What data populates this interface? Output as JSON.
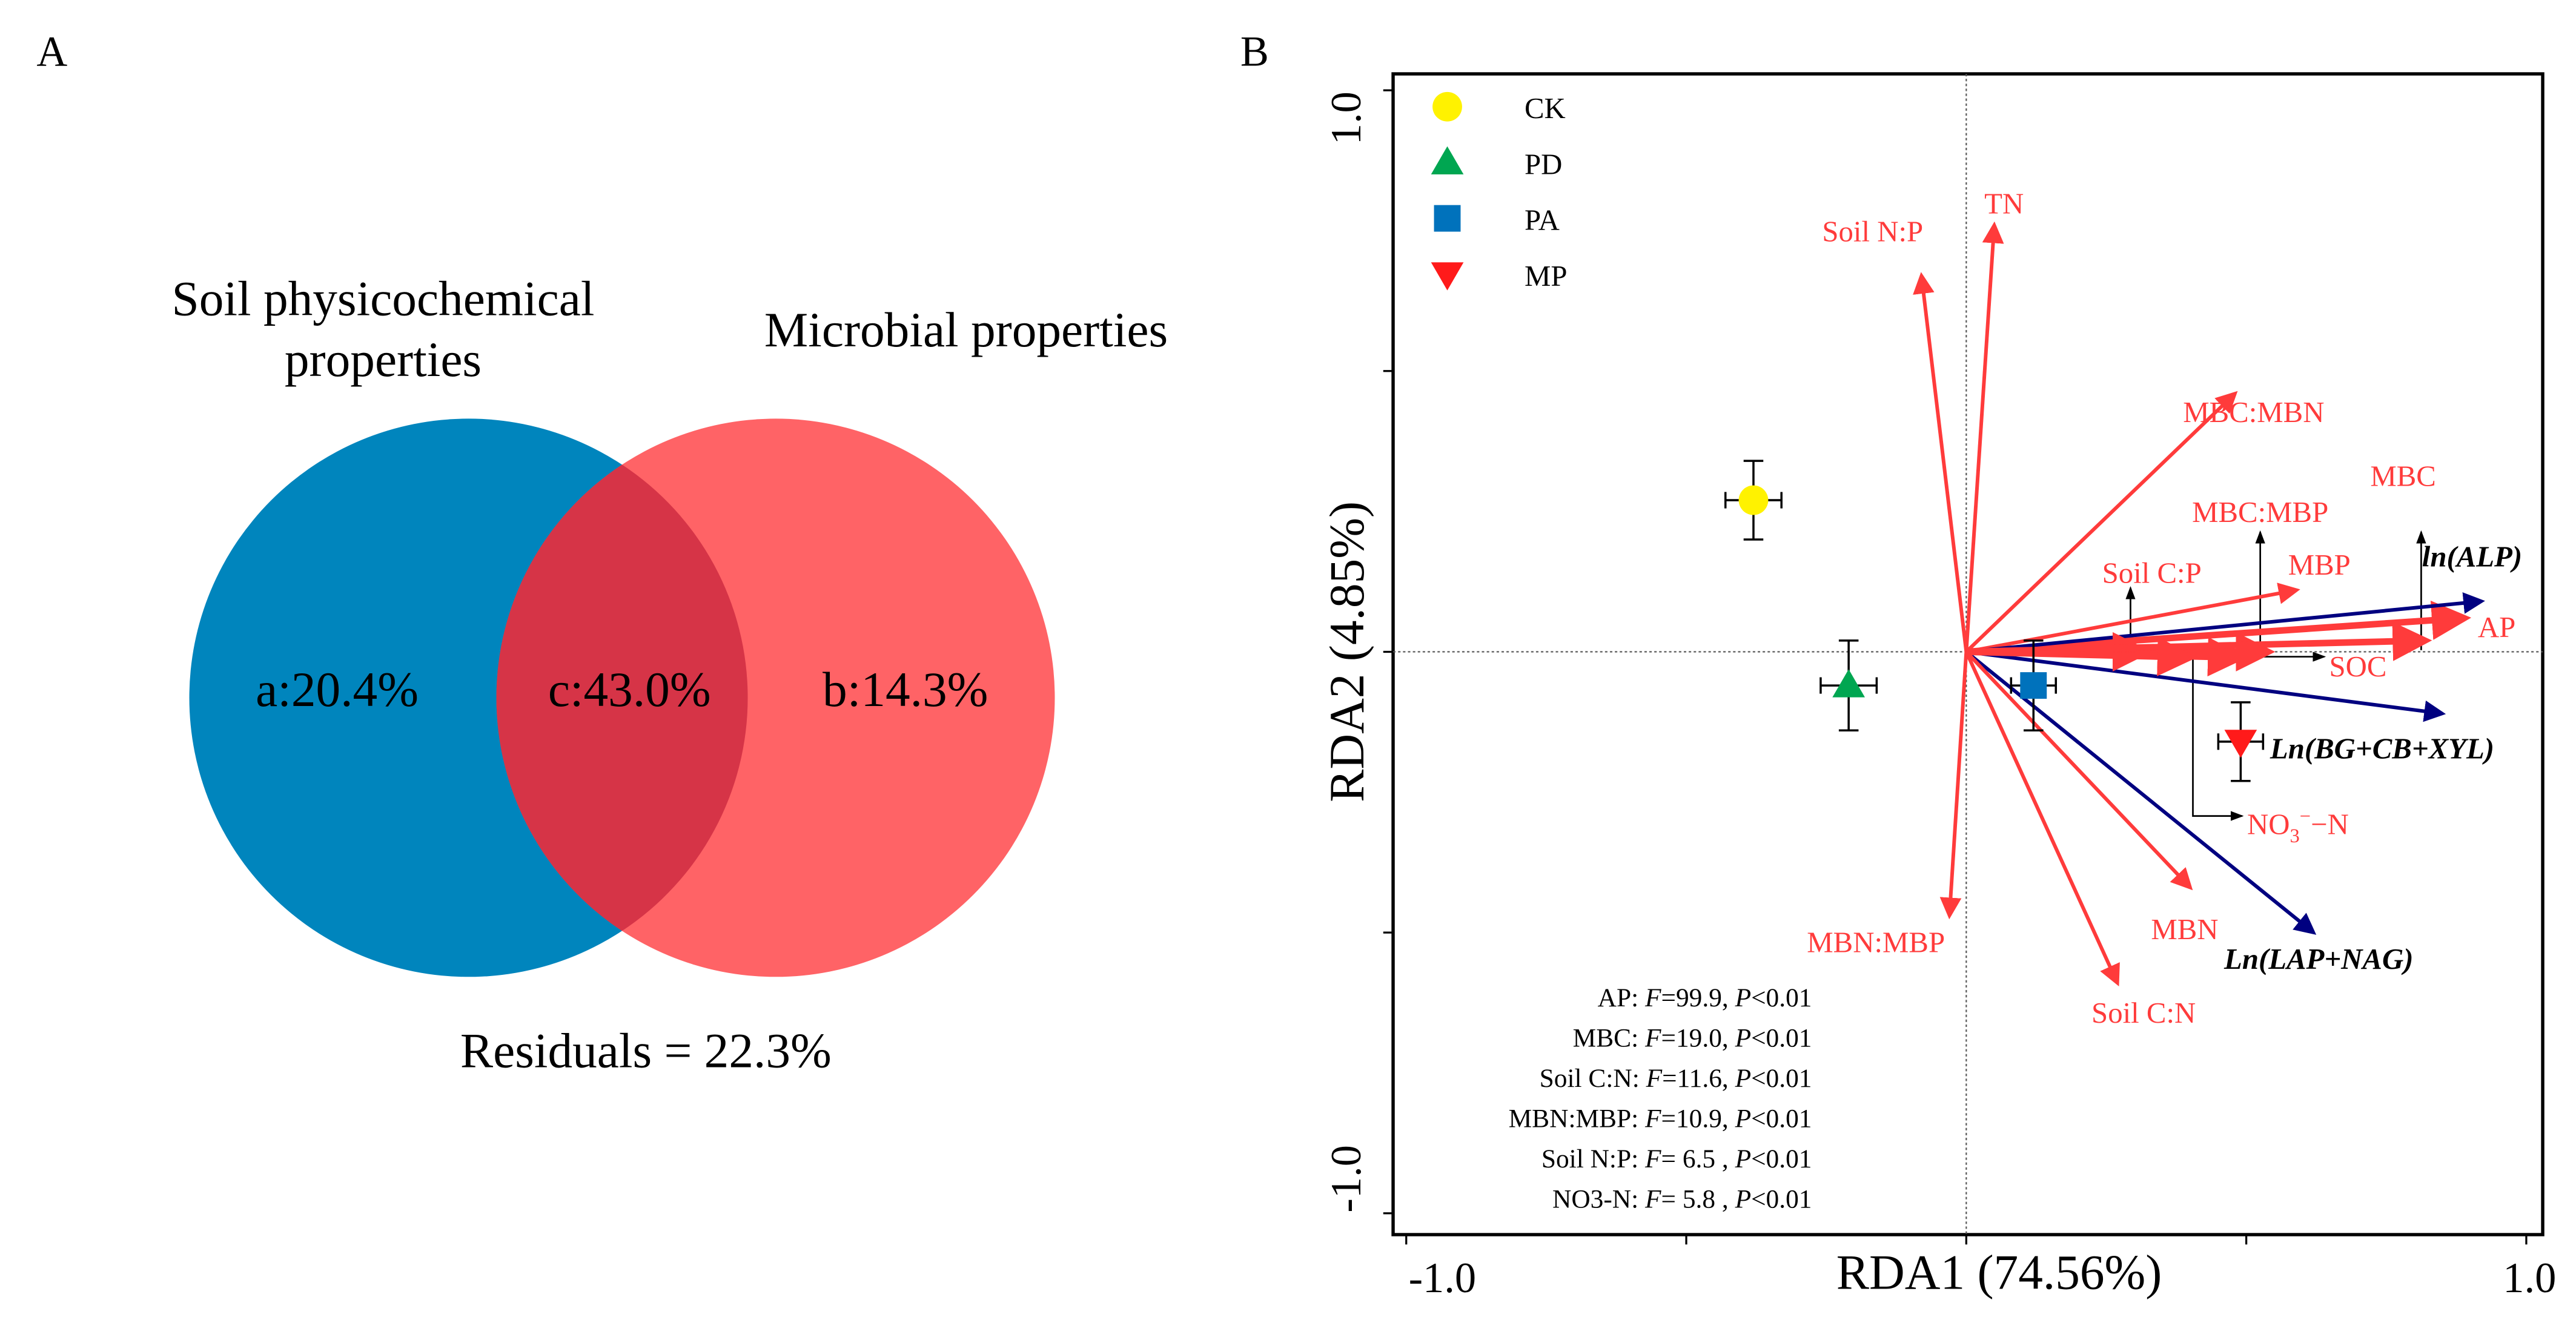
{
  "chart_data": [
    {
      "type": "venn",
      "panel_label": "A",
      "sets": [
        {
          "name": "Soil physicochemical properties",
          "name_lines": [
            "Soil physicochemical",
            "properties"
          ],
          "unique_label": "a:20.4%",
          "value": 20.4,
          "color": "#0085BD"
        },
        {
          "name": "Microbial properties",
          "name_lines": [
            "Microbial properties"
          ],
          "unique_label": "b:14.3%",
          "value": 14.3,
          "color": "#FF5B5E"
        }
      ],
      "overlap": {
        "label": "c:43.0%",
        "value": 43.0,
        "color": "#D63447"
      },
      "residuals": {
        "label": "Residuals = 22.3%",
        "value": 22.3
      }
    },
    {
      "type": "scatter",
      "subtype": "RDA biplot",
      "panel_label": "B",
      "xlabel": "RDA1 (74.56%)",
      "ylabel": "RDA2 (4.85%)",
      "xlim": [
        -1.0,
        1.0
      ],
      "ylim": [
        -1.0,
        1.0
      ],
      "x_tick_labels": [
        "-1.0",
        "1.0"
      ],
      "y_tick_labels": [
        "1.0",
        "-1.0"
      ],
      "legend_position": "top-left",
      "groups": [
        {
          "name": "CK",
          "marker": "circle",
          "color": "#FFF200",
          "x": -0.38,
          "y": 0.27,
          "xerr": 0.05,
          "yerr": 0.07
        },
        {
          "name": "PD",
          "marker": "triangle-up",
          "color": "#00A651",
          "x": -0.21,
          "y": -0.06,
          "xerr": 0.05,
          "yerr": 0.08
        },
        {
          "name": "PA",
          "marker": "square",
          "color": "#0072BC",
          "x": 0.12,
          "y": -0.06,
          "xerr": 0.04,
          "yerr": 0.08
        },
        {
          "name": "MP",
          "marker": "triangle-down",
          "color": "#FF1A1A",
          "x": 0.49,
          "y": -0.16,
          "xerr": 0.04,
          "yerr": 0.07
        }
      ],
      "vectors": [
        {
          "name": "Soil N:P",
          "x": -0.08,
          "y": 0.67,
          "color": "#FF3B3B",
          "italic": false
        },
        {
          "name": "TN",
          "x": 0.05,
          "y": 0.76,
          "color": "#FF3B3B",
          "italic": false
        },
        {
          "name": "MBC:MBN",
          "x": 0.48,
          "y": 0.46,
          "color": "#FF3B3B",
          "italic": false
        },
        {
          "name": "MBP",
          "x": 0.59,
          "y": 0.11,
          "color": "#FF3B3B",
          "italic": false
        },
        {
          "name": "AP",
          "x": 0.89,
          "y": 0.06,
          "color": "#FF3B3B",
          "italic": false,
          "thick": true
        },
        {
          "name": "ln(ALP)",
          "x": 0.92,
          "y": 0.09,
          "color": "#000080",
          "italic": true
        },
        {
          "name": "Ln(BG+CB+XYL)",
          "x": 0.85,
          "y": -0.11,
          "color": "#000080",
          "italic": true
        },
        {
          "name": "Ln(LAP+NAG)",
          "x": 0.62,
          "y": -0.5,
          "color": "#000080",
          "italic": true
        },
        {
          "name": "MBN",
          "x": 0.4,
          "y": -0.42,
          "color": "#FF3B3B",
          "italic": false
        },
        {
          "name": "Soil C:N",
          "x": 0.27,
          "y": -0.59,
          "color": "#FF3B3B",
          "italic": false
        },
        {
          "name": "MBN:MBP",
          "x": -0.03,
          "y": -0.47,
          "color": "#FF3B3B",
          "italic": false
        },
        {
          "name": "SOC",
          "x": 0.49,
          "y": -0.01,
          "color": "#FF3B3B",
          "italic": false,
          "thick": true
        },
        {
          "name": "Soil C:P",
          "x": 0.32,
          "y": 0.0,
          "color": "#FF3B3B",
          "italic": false,
          "thick": true
        },
        {
          "name": "MBC:MBP",
          "x": 0.54,
          "y": 0.0,
          "color": "#FF3B3B",
          "italic": false,
          "thick": true
        },
        {
          "name": "MBC",
          "x": 0.82,
          "y": 0.02,
          "color": "#FF3B3B",
          "italic": false,
          "thick": true
        },
        {
          "name": "NO3−N",
          "x": 0.4,
          "y": -0.01,
          "color": "#FF3B3B",
          "italic": false,
          "thick": true
        }
      ],
      "labels": {
        "soil_np": "Soil N:P",
        "tn": "TN",
        "mbc_mbn": "MBC:MBN",
        "mbc": "MBC",
        "mbc_mbp": "MBC:MBP",
        "soil_cp": "Soil C:P",
        "mbp": "MBP",
        "ln_alp": "ln(ALP)",
        "ap": "AP",
        "soc": "SOC",
        "ln_bg": "Ln(BG+CB+XYL)",
        "no3": "NO",
        "no3_sub": "3",
        "no3_sup": "−",
        "no3_tail": "−N",
        "mbn_mbp": "MBN:MBP",
        "mbn": "MBN",
        "ln_lap": "Ln(LAP+NAG)",
        "soil_cn": "Soil C:N"
      },
      "stats": [
        {
          "var": "AP:",
          "F": "=99.9,",
          "P": "<0.01"
        },
        {
          "var": "MBC:",
          "F": "=19.0,",
          "P": "<0.01"
        },
        {
          "var": "Soil C:N:",
          "F": "=11.6,",
          "P": "<0.01"
        },
        {
          "var": "MBN:MBP:",
          "F": "=10.9,",
          "P": "<0.01"
        },
        {
          "var": "Soil N:P:",
          "F": "= 6.5 ,",
          "P": "<0.01"
        },
        {
          "var": "NO3-N:",
          "F": "= 5.8 ,",
          "P": "<0.01"
        }
      ],
      "stat_symbols": {
        "F": "F",
        "P": "P"
      }
    }
  ]
}
